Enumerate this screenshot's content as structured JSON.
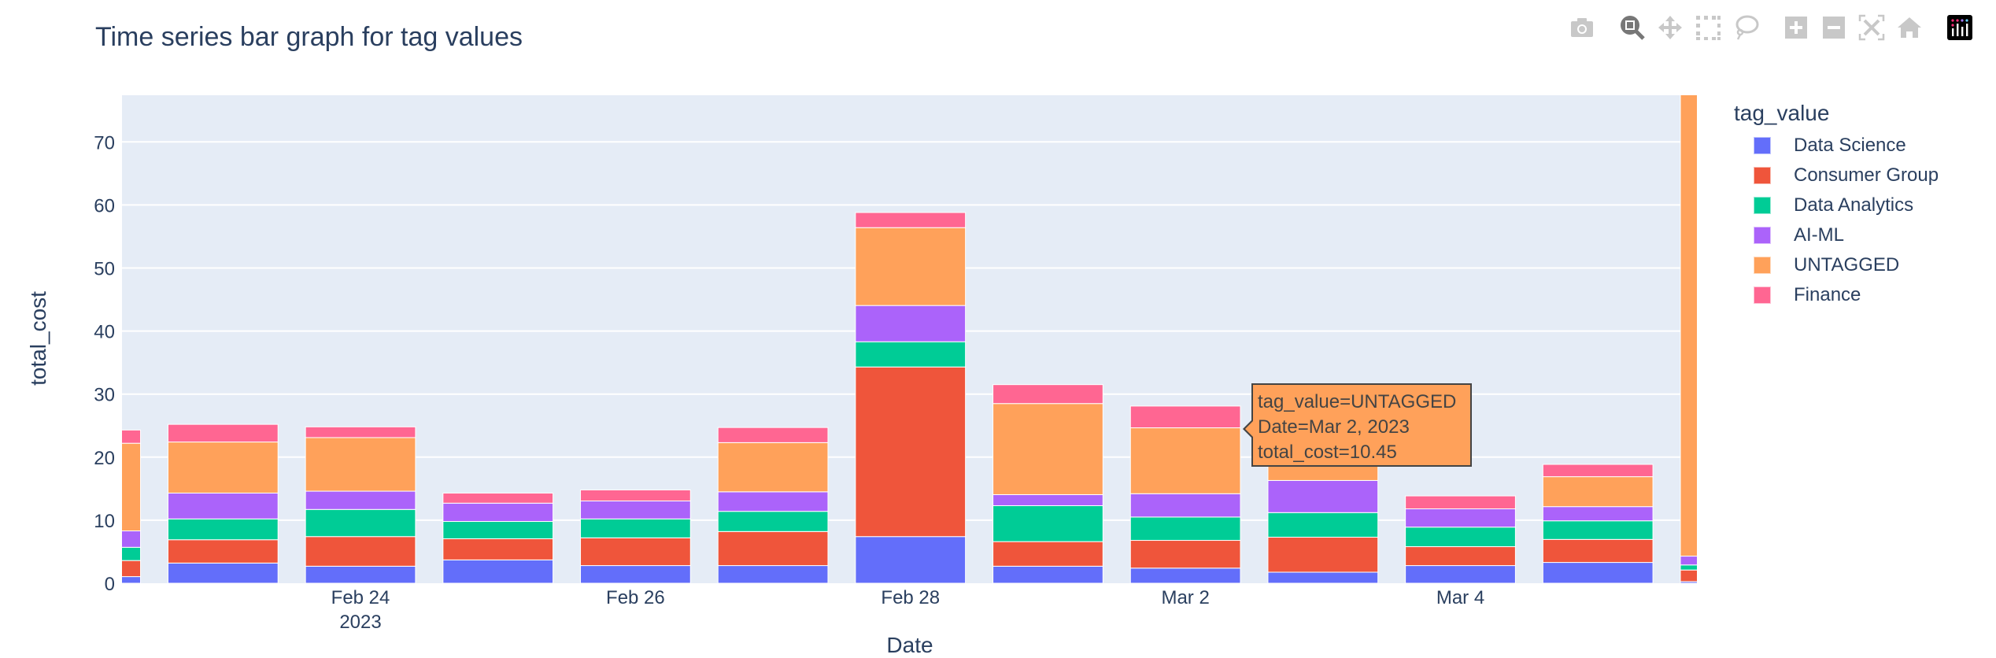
{
  "title": "Time series bar graph for tag values",
  "modebar": {
    "buttons": [
      "camera-icon",
      "zoom-icon",
      "pan-icon",
      "box-select-icon",
      "lasso-select-icon",
      "zoom-in-icon",
      "zoom-out-icon",
      "autoscale-icon",
      "reset-axes-icon",
      "plotly-logo-icon"
    ],
    "active": "zoom-icon"
  },
  "tooltip": {
    "line1": "tag_value=UNTAGGED",
    "line2": "Date=Mar 2, 2023",
    "line3": "total_cost=10.45"
  },
  "chart_data": {
    "type": "bar",
    "barmode": "stack",
    "title": "Time series bar graph for tag values",
    "xlabel": "Date",
    "ylabel": "total_cost",
    "ylim": [
      0,
      77.4
    ],
    "xlim": [
      "2023-02-22T06:22",
      "2023-03-05T17:17"
    ],
    "yticks": [
      0,
      10,
      20,
      30,
      40,
      50,
      60,
      70
    ],
    "xticks": [
      {
        "date": "2023-02-24",
        "label": "Feb 24",
        "sublabel": "2023"
      },
      {
        "date": "2023-02-26",
        "label": "Feb 26"
      },
      {
        "date": "2023-02-28",
        "label": "Feb 28"
      },
      {
        "date": "2023-03-02",
        "label": "Mar 2"
      },
      {
        "date": "2023-03-04",
        "label": "Mar 4"
      }
    ],
    "grid": true,
    "legend_title": "tag_value",
    "legend_position": "right",
    "categories": [
      "2023-02-22",
      "2023-02-23",
      "2023-02-24",
      "2023-02-25",
      "2023-02-26",
      "2023-02-27",
      "2023-02-28",
      "2023-03-01",
      "2023-03-02",
      "2023-03-03",
      "2023-03-04",
      "2023-03-05",
      "2023-03-06"
    ],
    "series": [
      {
        "name": "Data Science",
        "color": "#636EFA",
        "values": [
          1.05,
          3.2,
          2.7,
          3.7,
          2.8,
          2.8,
          7.4,
          2.7,
          2.4,
          1.75,
          2.8,
          3.3,
          0.26
        ]
      },
      {
        "name": "Consumer Group",
        "color": "#EF553B",
        "values": [
          2.55,
          3.7,
          4.7,
          3.35,
          4.4,
          5.4,
          26.9,
          3.9,
          4.4,
          5.55,
          3.0,
          3.65,
          1.84
        ]
      },
      {
        "name": "Data Analytics",
        "color": "#00CC96",
        "values": [
          2.1,
          3.3,
          4.3,
          2.75,
          3.0,
          3.2,
          4.0,
          5.7,
          3.7,
          3.9,
          3.1,
          2.95,
          0.8
        ]
      },
      {
        "name": "AI-ML",
        "color": "#AB63FA",
        "values": [
          2.6,
          4.1,
          2.9,
          2.9,
          2.85,
          3.1,
          5.75,
          1.75,
          3.7,
          5.1,
          2.9,
          2.25,
          1.4
        ]
      },
      {
        "name": "UNTAGGED",
        "color": "#FFA15A",
        "values": [
          13.9,
          8.1,
          8.5,
          0,
          0,
          7.8,
          12.35,
          14.45,
          10.45,
          3.7,
          0,
          4.75,
          76.0
        ]
      },
      {
        "name": "Finance",
        "color": "#FF6692",
        "values": [
          2.1,
          2.8,
          1.7,
          1.6,
          1.75,
          2.4,
          2.4,
          3.0,
          3.45,
          2.0,
          2.05,
          1.95,
          0
        ]
      }
    ]
  }
}
